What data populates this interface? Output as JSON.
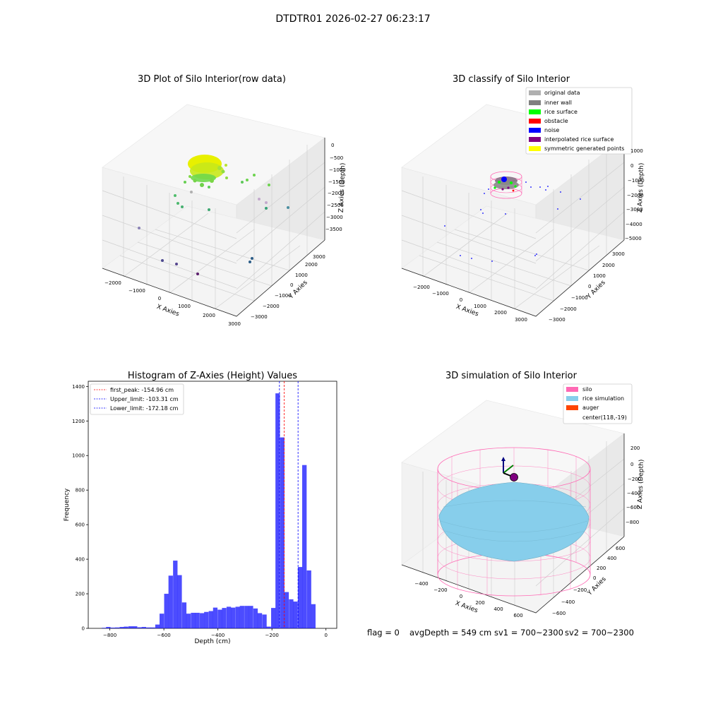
{
  "suptitle": "DTDTR01 2026-02-27 06:23:17",
  "status_line": {
    "flag": "flag = 0",
    "avg_depth": "avgDepth = 549 cm",
    "sv1": "sv1 = 700~2300",
    "sv2": "sv2 = 700~2300"
  },
  "panels": {
    "raw": {
      "title": "3D Plot of Silo Interior(row data)",
      "xlabel": "X Axies",
      "ylabel": "Y Axies",
      "zlabel": "Z Axies (Depth)",
      "xticks": [
        "−2000",
        "−1000",
        "0",
        "1000",
        "2000",
        "3000"
      ],
      "yticks": [
        "−3000",
        "−2000",
        "−1000",
        "0",
        "1000",
        "2000",
        "3000"
      ],
      "zticks": [
        "0",
        "−500",
        "−1000",
        "−1500",
        "−2000",
        "−2500",
        "−3000",
        "−3500"
      ]
    },
    "classify": {
      "title": "3D classify of Silo Interior",
      "xlabel": "X Axies",
      "ylabel": "Y Axies",
      "zlabel": "Z Axies (Depth)",
      "xticks": [
        "−2000",
        "−1000",
        "0",
        "1000",
        "2000",
        "3000"
      ],
      "yticks": [
        "−3000",
        "−2000",
        "−1000",
        "0",
        "1000",
        "2000",
        "3000"
      ],
      "zticks": [
        "1000",
        "0",
        "−1000",
        "−2000",
        "−3000",
        "−4000",
        "−5000"
      ],
      "legend": [
        {
          "label": "original data",
          "color": "#b0b0b0"
        },
        {
          "label": "inner wall",
          "color": "#808080"
        },
        {
          "label": "rice surface",
          "color": "#00ff00"
        },
        {
          "label": "obstacle",
          "color": "#ff0000"
        },
        {
          "label": "noise",
          "color": "#0000ff"
        },
        {
          "label": "interpolated rice surface",
          "color": "#800080"
        },
        {
          "label": "symmetric generated points",
          "color": "#ffff00"
        }
      ]
    },
    "simulation": {
      "title": "3D simulation of Silo Interior",
      "xlabel": "X Axies",
      "ylabel": "Y Axies",
      "zlabel": "Z Axies (Depth)",
      "xticks": [
        "−400",
        "−200",
        "0",
        "200",
        "400",
        "600"
      ],
      "yticks": [
        "−600",
        "−400",
        "−200",
        "0",
        "200",
        "400",
        "600"
      ],
      "zticks": [
        "200",
        "0",
        "−200",
        "−400",
        "−600",
        "−800"
      ],
      "legend": [
        {
          "label": "silo",
          "color": "#ff69b4"
        },
        {
          "label": "rice simulation",
          "color": "#87ceeb"
        },
        {
          "label": "auger",
          "color": "#ff4500"
        },
        {
          "label": "center(118,-19)",
          "color": ""
        }
      ]
    }
  },
  "colors": {
    "histogram_bar": "#0000ff",
    "first_peak_line": "#ff0000",
    "limit_lines": "#0000ff"
  },
  "chart_data": {
    "type": "bar",
    "title": "Histogram of Z-Axies (Height) Values",
    "xlabel": "Depth (cm)",
    "ylabel": "Frequency",
    "xlim": [
      -880,
      40
    ],
    "ylim": [
      0,
      1430
    ],
    "xticks": [
      -800,
      -600,
      -400,
      -200,
      0
    ],
    "yticks": [
      0,
      200,
      400,
      600,
      800,
      1000,
      1200,
      1400
    ],
    "bin_width": 16.5,
    "bins": [
      {
        "x": -830,
        "value": 3
      },
      {
        "x": -814,
        "value": 8
      },
      {
        "x": -797,
        "value": 4
      },
      {
        "x": -781,
        "value": 5
      },
      {
        "x": -764,
        "value": 8
      },
      {
        "x": -748,
        "value": 10
      },
      {
        "x": -731,
        "value": 12
      },
      {
        "x": -715,
        "value": 12
      },
      {
        "x": -698,
        "value": 6
      },
      {
        "x": -682,
        "value": 8
      },
      {
        "x": -665,
        "value": 5
      },
      {
        "x": -649,
        "value": 5
      },
      {
        "x": -632,
        "value": 22
      },
      {
        "x": -616,
        "value": 85
      },
      {
        "x": -599,
        "value": 200
      },
      {
        "x": -583,
        "value": 305
      },
      {
        "x": -566,
        "value": 392
      },
      {
        "x": -550,
        "value": 308
      },
      {
        "x": -533,
        "value": 150
      },
      {
        "x": -517,
        "value": 85
      },
      {
        "x": -500,
        "value": 90
      },
      {
        "x": -484,
        "value": 90
      },
      {
        "x": -467,
        "value": 88
      },
      {
        "x": -451,
        "value": 95
      },
      {
        "x": -434,
        "value": 100
      },
      {
        "x": -418,
        "value": 120
      },
      {
        "x": -401,
        "value": 108
      },
      {
        "x": -385,
        "value": 118
      },
      {
        "x": -368,
        "value": 125
      },
      {
        "x": -352,
        "value": 120
      },
      {
        "x": -335,
        "value": 125
      },
      {
        "x": -319,
        "value": 130
      },
      {
        "x": -302,
        "value": 130
      },
      {
        "x": -286,
        "value": 130
      },
      {
        "x": -269,
        "value": 115
      },
      {
        "x": -253,
        "value": 88
      },
      {
        "x": -236,
        "value": 80
      },
      {
        "x": -220,
        "value": 10
      },
      {
        "x": -203,
        "value": 118
      },
      {
        "x": -187,
        "value": 1360
      },
      {
        "x": -170,
        "value": 1105
      },
      {
        "x": -154,
        "value": 210
      },
      {
        "x": -137,
        "value": 168
      },
      {
        "x": -121,
        "value": 155
      },
      {
        "x": -104,
        "value": 355
      },
      {
        "x": -88,
        "value": 945
      },
      {
        "x": -71,
        "value": 335
      },
      {
        "x": -55,
        "value": 140
      }
    ],
    "vlines": [
      {
        "label": "first_peak: -154.96 cm",
        "x": -154.96,
        "color": "#ff0000"
      },
      {
        "label": "Upper_limit: -103.31 cm",
        "x": -103.31,
        "color": "#0000ff"
      },
      {
        "label": "Lower_limit: -172.18 cm",
        "x": -172.18,
        "color": "#0000ff"
      }
    ]
  }
}
